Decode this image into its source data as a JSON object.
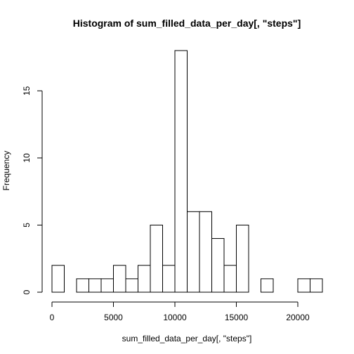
{
  "chart_data": {
    "type": "bar",
    "title": "Histogram of sum_filled_data_per_day[, \"steps\"]",
    "xlabel": "sum_filled_data_per_day[, \"steps\"]",
    "ylabel": "Frequency",
    "bin_width": 1000,
    "bin_edges": [
      0,
      1000,
      2000,
      3000,
      4000,
      5000,
      6000,
      7000,
      8000,
      9000,
      10000,
      11000,
      12000,
      13000,
      14000,
      15000,
      16000,
      17000,
      18000,
      19000,
      20000,
      21000,
      22000
    ],
    "values": [
      2,
      0,
      1,
      1,
      1,
      2,
      1,
      2,
      5,
      2,
      18,
      6,
      6,
      4,
      2,
      5,
      0,
      1,
      0,
      0,
      1,
      1
    ],
    "xlim": [
      0,
      22000
    ],
    "ylim": [
      0,
      18
    ],
    "x_ticks": [
      0,
      5000,
      10000,
      15000,
      20000
    ],
    "y_ticks": [
      0,
      5,
      10,
      15
    ],
    "grid": false,
    "bar_fill": "#ffffff",
    "bar_stroke": "#000000"
  }
}
